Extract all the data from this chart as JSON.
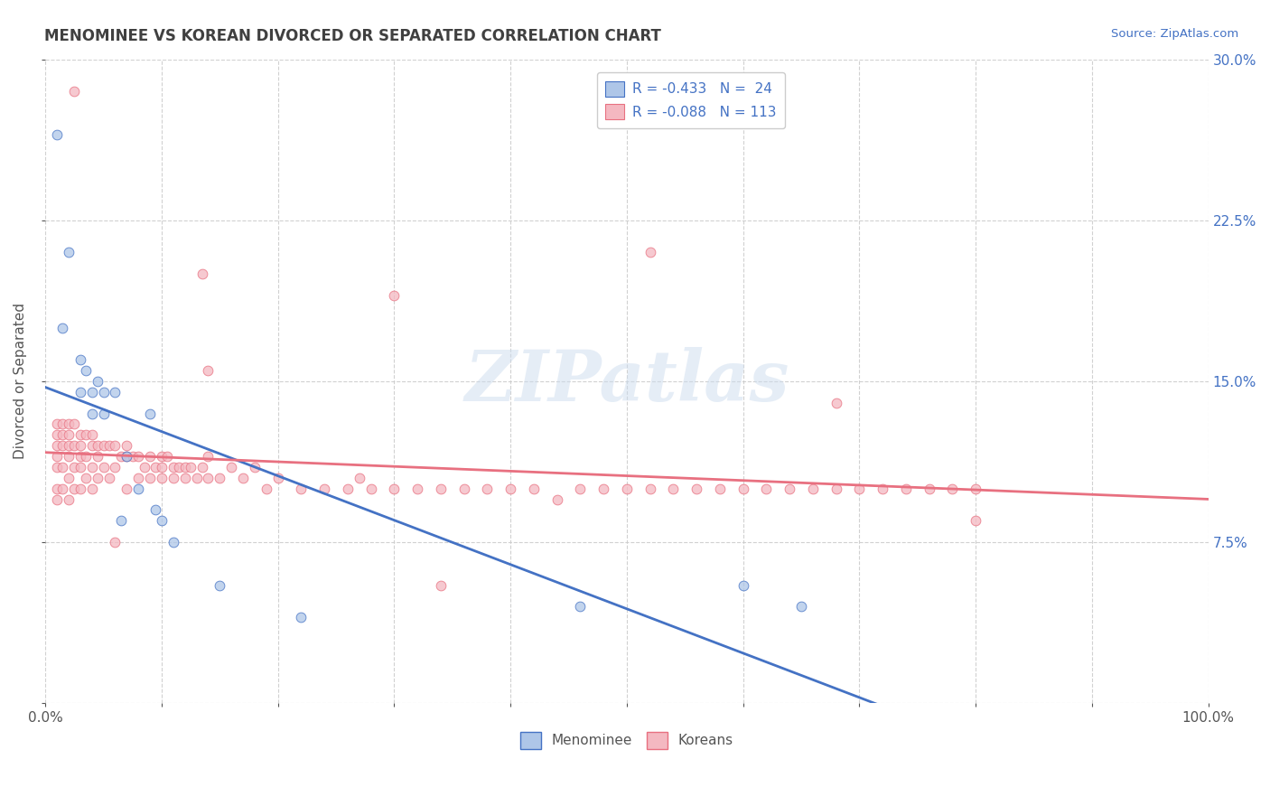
{
  "title": "MENOMINEE VS KOREAN DIVORCED OR SEPARATED CORRELATION CHART",
  "source_text": "Source: ZipAtlas.com",
  "ylabel": "Divorced or Separated",
  "watermark": "ZIPatlas",
  "legend_entries": [
    {
      "label": "R = -0.433   N =  24",
      "color": "#aec6e8",
      "edge_color": "#4472c4"
    },
    {
      "label": "R = -0.088   N = 113",
      "color": "#f4b8c1",
      "edge_color": "#e87080"
    }
  ],
  "legend_labels": [
    "Menominee",
    "Koreans"
  ],
  "xlim": [
    0.0,
    1.0
  ],
  "ylim": [
    0.0,
    0.3
  ],
  "xtick_positions": [
    0.0,
    0.1,
    0.2,
    0.3,
    0.4,
    0.5,
    0.6,
    0.7,
    0.8,
    0.9,
    1.0
  ],
  "xtick_labels_sparse": {
    "0.0": "0.0%",
    "1.0": "100.0%"
  },
  "yticks": [
    0.0,
    0.075,
    0.15,
    0.225,
    0.3
  ],
  "ytick_labels_right": [
    "",
    "7.5%",
    "15.0%",
    "22.5%",
    "30.0%"
  ],
  "background_color": "#ffffff",
  "grid_color": "#cccccc",
  "title_color": "#404040",
  "menominee_color": "#aec6e8",
  "menominee_edge_color": "#4472c4",
  "korean_color": "#f4b8c1",
  "korean_edge_color": "#e87080",
  "trend_menominee_color": "#4472c4",
  "trend_korean_color": "#e87080",
  "scatter_size": 60,
  "scatter_alpha": 0.75,
  "trend_linewidth": 2.0,
  "menominee_x": [
    0.01,
    0.015,
    0.02,
    0.03,
    0.03,
    0.035,
    0.04,
    0.04,
    0.045,
    0.05,
    0.05,
    0.06,
    0.065,
    0.07,
    0.08,
    0.09,
    0.095,
    0.1,
    0.11,
    0.15,
    0.22,
    0.46,
    0.6,
    0.65
  ],
  "menominee_y": [
    0.265,
    0.175,
    0.21,
    0.16,
    0.145,
    0.155,
    0.145,
    0.135,
    0.15,
    0.145,
    0.135,
    0.145,
    0.085,
    0.115,
    0.1,
    0.135,
    0.09,
    0.085,
    0.075,
    0.055,
    0.04,
    0.045,
    0.055,
    0.045
  ],
  "korean_x": [
    0.01,
    0.01,
    0.01,
    0.01,
    0.01,
    0.01,
    0.01,
    0.015,
    0.015,
    0.015,
    0.015,
    0.015,
    0.02,
    0.02,
    0.02,
    0.02,
    0.02,
    0.02,
    0.025,
    0.025,
    0.025,
    0.025,
    0.03,
    0.03,
    0.03,
    0.03,
    0.03,
    0.035,
    0.035,
    0.035,
    0.04,
    0.04,
    0.04,
    0.04,
    0.045,
    0.045,
    0.045,
    0.05,
    0.05,
    0.055,
    0.055,
    0.06,
    0.06,
    0.065,
    0.07,
    0.07,
    0.07,
    0.075,
    0.08,
    0.08,
    0.085,
    0.09,
    0.09,
    0.095,
    0.1,
    0.1,
    0.1,
    0.105,
    0.11,
    0.11,
    0.115,
    0.12,
    0.12,
    0.125,
    0.13,
    0.135,
    0.14,
    0.14,
    0.15,
    0.16,
    0.17,
    0.18,
    0.19,
    0.2,
    0.22,
    0.24,
    0.26,
    0.27,
    0.28,
    0.3,
    0.32,
    0.34,
    0.36,
    0.38,
    0.4,
    0.42,
    0.44,
    0.46,
    0.48,
    0.5,
    0.52,
    0.54,
    0.56,
    0.58,
    0.6,
    0.62,
    0.64,
    0.66,
    0.68,
    0.7,
    0.72,
    0.74,
    0.76,
    0.78,
    0.8,
    0.3,
    0.52,
    0.34,
    0.8,
    0.68,
    0.14,
    0.06,
    0.025,
    0.135
  ],
  "korean_y": [
    0.13,
    0.125,
    0.12,
    0.115,
    0.11,
    0.1,
    0.095,
    0.13,
    0.125,
    0.12,
    0.11,
    0.1,
    0.13,
    0.125,
    0.12,
    0.115,
    0.105,
    0.095,
    0.13,
    0.12,
    0.11,
    0.1,
    0.125,
    0.12,
    0.115,
    0.11,
    0.1,
    0.125,
    0.115,
    0.105,
    0.125,
    0.12,
    0.11,
    0.1,
    0.12,
    0.115,
    0.105,
    0.12,
    0.11,
    0.12,
    0.105,
    0.12,
    0.11,
    0.115,
    0.12,
    0.115,
    0.1,
    0.115,
    0.115,
    0.105,
    0.11,
    0.115,
    0.105,
    0.11,
    0.115,
    0.11,
    0.105,
    0.115,
    0.11,
    0.105,
    0.11,
    0.11,
    0.105,
    0.11,
    0.105,
    0.11,
    0.115,
    0.105,
    0.105,
    0.11,
    0.105,
    0.11,
    0.1,
    0.105,
    0.1,
    0.1,
    0.1,
    0.105,
    0.1,
    0.1,
    0.1,
    0.1,
    0.1,
    0.1,
    0.1,
    0.1,
    0.095,
    0.1,
    0.1,
    0.1,
    0.1,
    0.1,
    0.1,
    0.1,
    0.1,
    0.1,
    0.1,
    0.1,
    0.1,
    0.1,
    0.1,
    0.1,
    0.1,
    0.1,
    0.1,
    0.19,
    0.21,
    0.055,
    0.085,
    0.14,
    0.155,
    0.075,
    0.285,
    0.2
  ]
}
